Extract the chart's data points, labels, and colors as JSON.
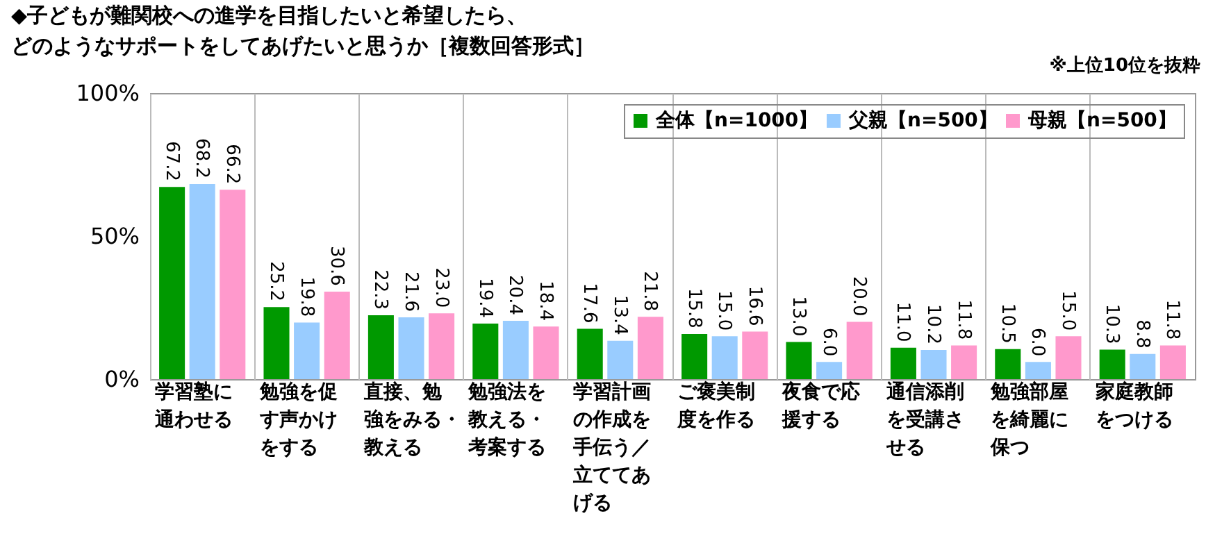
{
  "chart_data": {
    "type": "bar",
    "title": "◆子どもが難関校への進学を目指したいと希望したら、どのようなサポートをしてあげたいと思うか［複数回答形式］",
    "annotations": [
      "※上位10位を抜粋"
    ],
    "categories": [
      "学習塾に通わせる",
      "勉強を促す声かけをする",
      "直接、勉強をみる・教える",
      "勉強法を教える・考案する",
      "学習計画の作成を手伝う／立ててあげる",
      "ご褒美制度を作る",
      "夜食で応援する",
      "通信添削を受講させる",
      "勉強部屋を綺麗に保つ",
      "家庭教師をつける"
    ],
    "series": [
      {
        "name": "全体【n=1000】",
        "color": "#009900",
        "values": [
          67.2,
          25.2,
          22.3,
          19.4,
          17.6,
          15.8,
          13.0,
          11.0,
          10.5,
          10.3
        ],
        "value_labels": [
          "67.2",
          "25.2",
          "22.3",
          "19.4",
          "17.6",
          "15.8",
          "13.0",
          "11.0",
          "10.5",
          "10.3"
        ]
      },
      {
        "name": "父親【n=500】",
        "color": "#99ccff",
        "values": [
          68.2,
          19.8,
          21.6,
          20.4,
          13.4,
          15.0,
          6.0,
          10.2,
          6.0,
          8.8
        ],
        "value_labels": [
          "68.2",
          "19.8",
          "21.6",
          "20.4",
          "13.4",
          "15.0",
          "6.0",
          "10.2",
          "6.0",
          "8.8"
        ]
      },
      {
        "name": "母親【n=500】",
        "color": "#ff99cc",
        "values": [
          66.2,
          30.6,
          23.0,
          18.4,
          21.8,
          16.6,
          20.0,
          11.8,
          15.0,
          11.8
        ],
        "value_labels": [
          "66.2",
          "30.6",
          "23.0",
          "18.4",
          "21.8",
          "16.6",
          "20.0",
          "11.8",
          "15.0",
          "11.8"
        ]
      }
    ],
    "ylim": [
      0,
      100
    ],
    "yticks": [
      {
        "value": 0,
        "label": "0%"
      },
      {
        "value": 50,
        "label": "50%"
      },
      {
        "value": 100,
        "label": "100%"
      }
    ],
    "grid": "x",
    "legend": "top right"
  }
}
